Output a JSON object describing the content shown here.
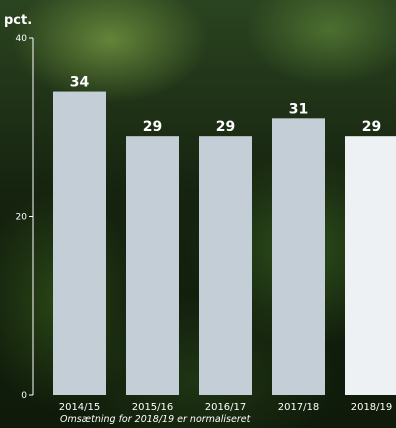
{
  "chart_data": {
    "type": "bar",
    "y_unit": "pct.",
    "ylim": [
      0,
      40
    ],
    "y_ticks": [
      0,
      20,
      40
    ],
    "categories": [
      "2014/15",
      "2015/16",
      "2016/17",
      "2017/18",
      "2018/19"
    ],
    "values": [
      34,
      29,
      29,
      31,
      29
    ],
    "value_labels": [
      "34",
      "29",
      "29",
      "31",
      "29"
    ],
    "highlighted_category": "2018/19",
    "footnote": "Omsætning for 2018/19 er normaliseret",
    "grid": false,
    "colors": {
      "bar": "#c3ced6",
      "bar_highlight": "#eef1f3",
      "text": "#ffffff",
      "axis": "#ffffff"
    }
  }
}
